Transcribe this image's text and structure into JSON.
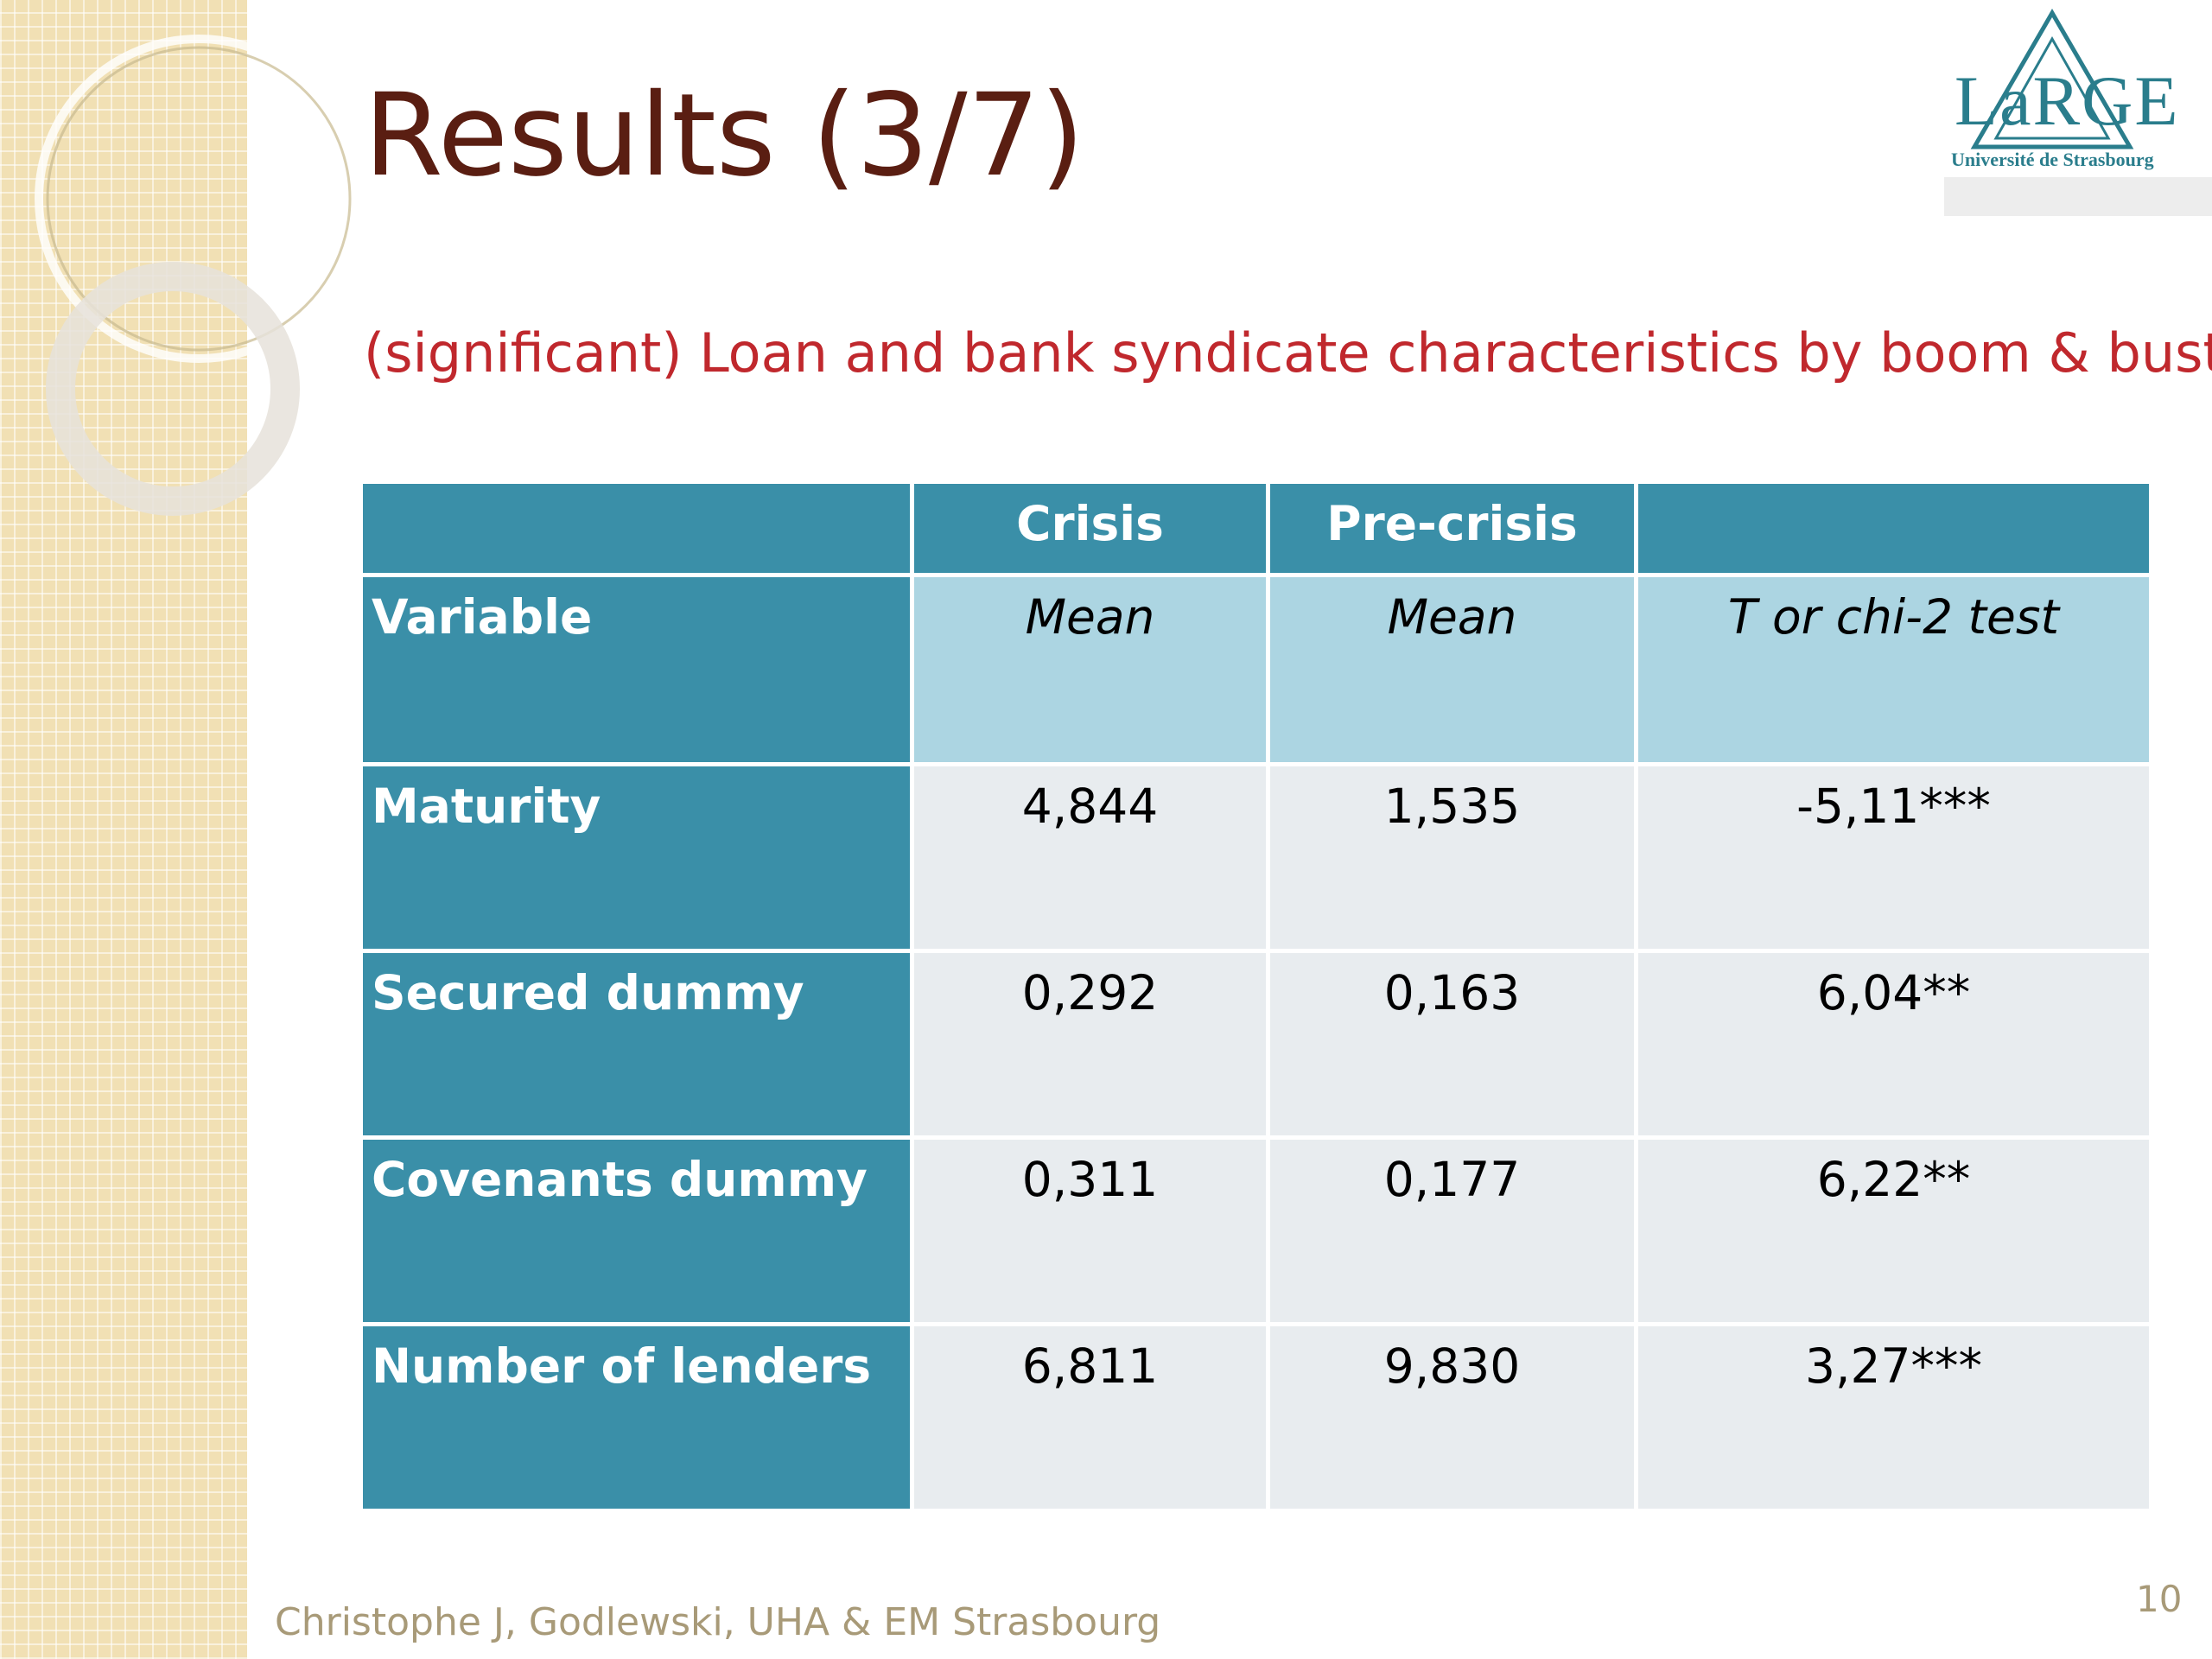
{
  "title": "Results (3/7)",
  "subtitle": "(significant) Loan and bank syndicate characteristics by boom & bust",
  "logo": {
    "name": "LaRGE",
    "institution": "Université de Strasbourg"
  },
  "table": {
    "groups": [
      "Crisis",
      "Pre-crisis"
    ],
    "columns": [
      "Variable",
      "Mean",
      "Mean",
      "T or chi-2 test"
    ],
    "rows": [
      [
        "Maturity",
        "4,844",
        "1,535",
        "-5,11***"
      ],
      [
        "Secured dummy",
        "0,292",
        "0,163",
        "6,04**"
      ],
      [
        "Covenants dummy",
        "0,311",
        "0,177",
        "6,22**"
      ],
      [
        "Number of lenders",
        "6,811",
        "9,830",
        "3,27***"
      ]
    ]
  },
  "footer": "Christophe J, Godlewski, UHA & EM Strasbourg",
  "page_number": "10"
}
